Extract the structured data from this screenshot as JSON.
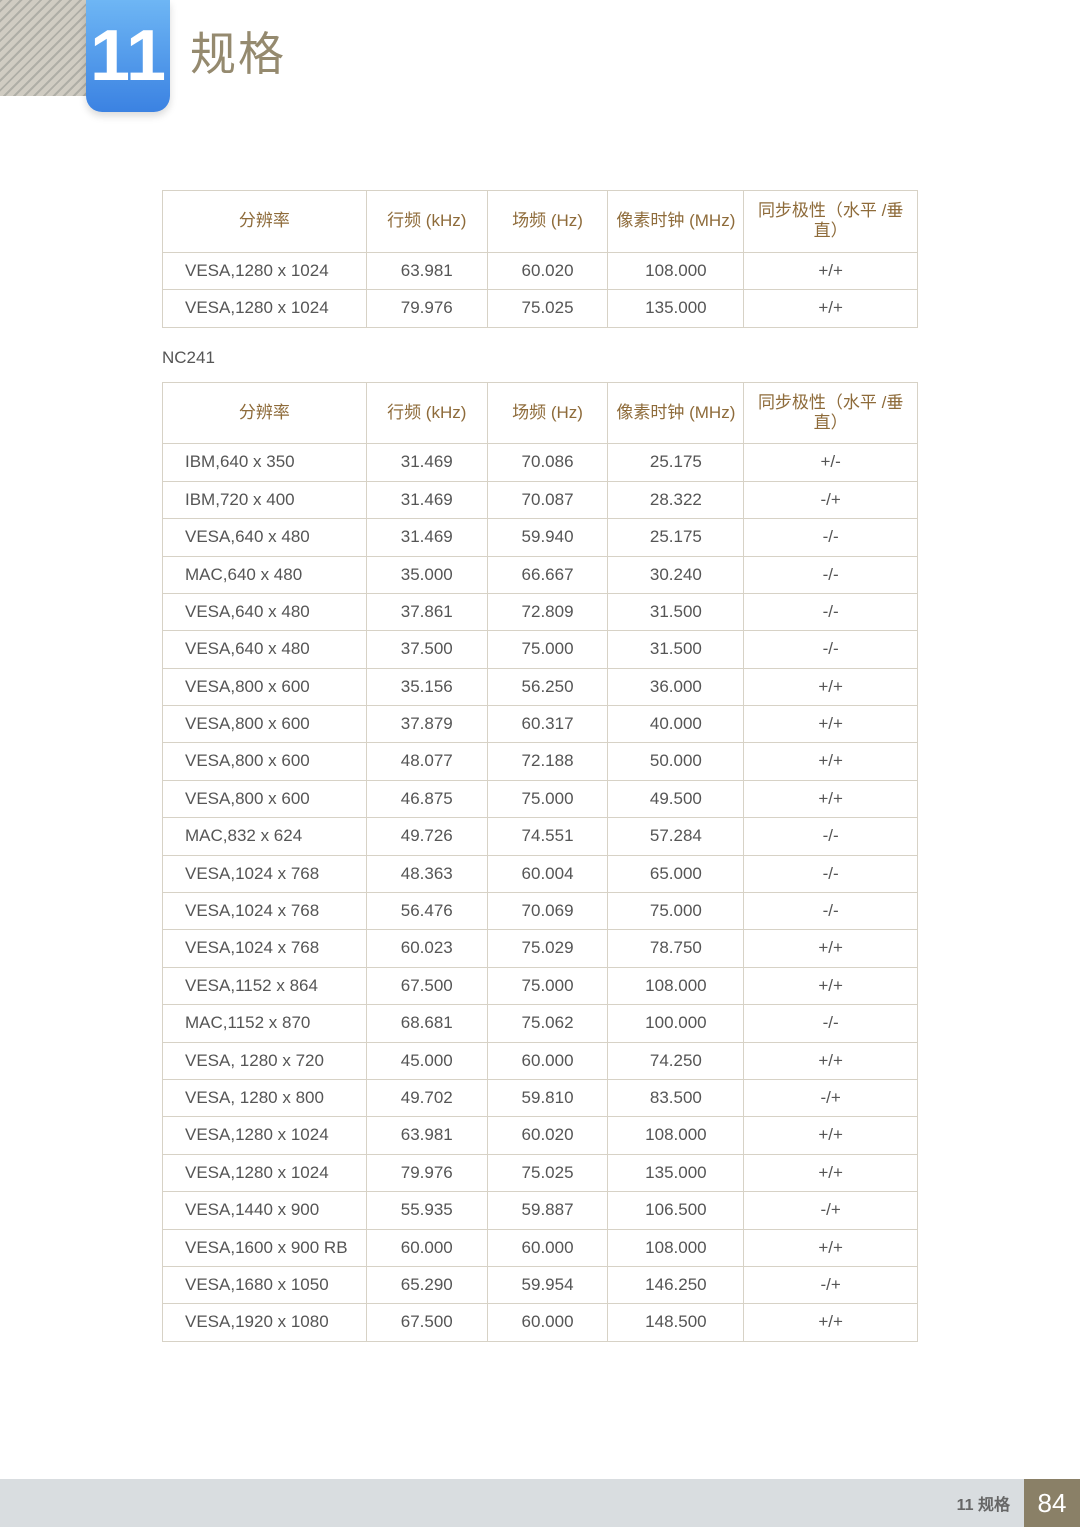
{
  "chapter": {
    "number": "11",
    "title": "规格"
  },
  "footer": {
    "label": "11 规格",
    "page": "84"
  },
  "model_label": "NC241",
  "columns": [
    "分辨率",
    "行频 (kHz)",
    "场频 (Hz)",
    "像素时钟 (MHz)",
    "同步极性（水平 /垂直）"
  ],
  "colors": {
    "header_text": "#8e6b3a",
    "border": "#d7d2c6",
    "top_band": "#8a8067",
    "tab_gradient_top": "#6eb6f4",
    "tab_gradient_bottom": "#3b82e2",
    "footer_band": "#d9dde0"
  },
  "table1_rows": [
    [
      "VESA,1280 x 1024",
      "63.981",
      "60.020",
      "108.000",
      "+/+"
    ],
    [
      "VESA,1280 x 1024",
      "79.976",
      "75.025",
      "135.000",
      "+/+"
    ]
  ],
  "table2_rows": [
    [
      "IBM,640 x 350",
      "31.469",
      "70.086",
      "25.175",
      "+/-"
    ],
    [
      "IBM,720 x 400",
      "31.469",
      "70.087",
      "28.322",
      "-/+"
    ],
    [
      "VESA,640 x 480",
      "31.469",
      "59.940",
      "25.175",
      "-/-"
    ],
    [
      "MAC,640 x 480",
      "35.000",
      "66.667",
      "30.240",
      "-/-"
    ],
    [
      "VESA,640 x 480",
      "37.861",
      "72.809",
      "31.500",
      "-/-"
    ],
    [
      "VESA,640 x 480",
      "37.500",
      "75.000",
      "31.500",
      "-/-"
    ],
    [
      "VESA,800 x 600",
      "35.156",
      "56.250",
      "36.000",
      "+/+"
    ],
    [
      "VESA,800 x 600",
      "37.879",
      "60.317",
      "40.000",
      "+/+"
    ],
    [
      "VESA,800 x 600",
      "48.077",
      "72.188",
      "50.000",
      "+/+"
    ],
    [
      "VESA,800 x 600",
      "46.875",
      "75.000",
      "49.500",
      "+/+"
    ],
    [
      "MAC,832 x 624",
      "49.726",
      "74.551",
      "57.284",
      "-/-"
    ],
    [
      "VESA,1024 x 768",
      "48.363",
      "60.004",
      "65.000",
      "-/-"
    ],
    [
      "VESA,1024 x 768",
      "56.476",
      "70.069",
      "75.000",
      "-/-"
    ],
    [
      "VESA,1024 x 768",
      "60.023",
      "75.029",
      "78.750",
      "+/+"
    ],
    [
      "VESA,1152 x 864",
      "67.500",
      "75.000",
      "108.000",
      "+/+"
    ],
    [
      "MAC,1152 x 870",
      "68.681",
      "75.062",
      "100.000",
      "-/-"
    ],
    [
      "VESA, 1280 x 720",
      "45.000",
      "60.000",
      "74.250",
      "+/+"
    ],
    [
      "VESA, 1280 x 800",
      "49.702",
      "59.810",
      "83.500",
      "-/+"
    ],
    [
      "VESA,1280 x 1024",
      "63.981",
      "60.020",
      "108.000",
      "+/+"
    ],
    [
      "VESA,1280 x 1024",
      "79.976",
      "75.025",
      "135.000",
      "+/+"
    ],
    [
      "VESA,1440 x 900",
      "55.935",
      "59.887",
      "106.500",
      "-/+"
    ],
    [
      "VESA,1600 x 900 RB",
      "60.000",
      "60.000",
      "108.000",
      "+/+"
    ],
    [
      "VESA,1680 x 1050",
      "65.290",
      "59.954",
      "146.250",
      "-/+"
    ],
    [
      "VESA,1920 x 1080",
      "67.500",
      "60.000",
      "148.500",
      "+/+"
    ]
  ]
}
